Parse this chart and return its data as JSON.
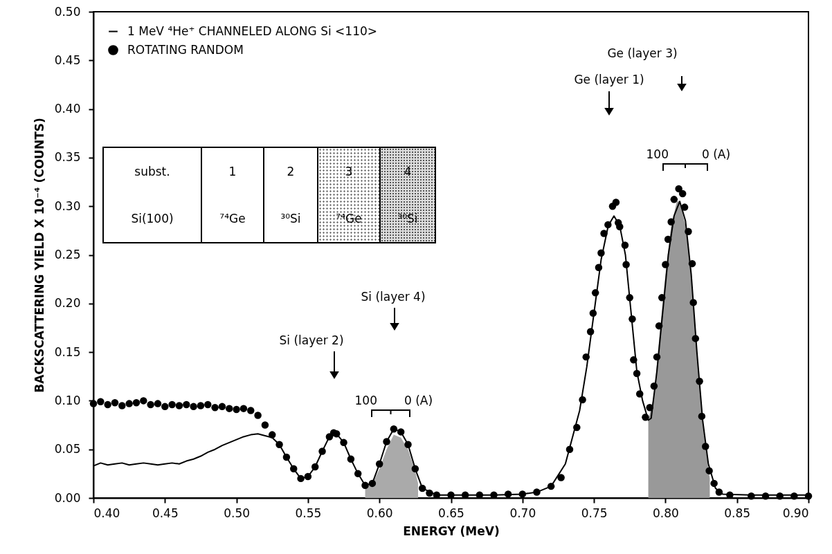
{
  "chart_data": {
    "type": "line",
    "xlabel": "ENERGY (MeV)",
    "ylabel": "BACKSCATTERING YIELD X 10⁻⁴ (COUNTS)",
    "xlim": [
      0.4,
      0.9
    ],
    "ylim": [
      0,
      0.5
    ],
    "xticks": [
      {
        "value": 0.4,
        "label": "0.40"
      },
      0.45,
      {
        "value": 0.5,
        "label": "0.50"
      },
      0.55,
      {
        "value": 0.6,
        "label": "0.60"
      },
      0.65,
      {
        "value": 0.7,
        "label": "0.70"
      },
      0.75,
      {
        "value": 0.8,
        "label": "0.80"
      },
      0.85,
      {
        "value": 0.9,
        "label": "0.90"
      }
    ],
    "yticks": [
      {
        "value": 0,
        "label": "0.00"
      },
      0.05,
      {
        "value": 0.1,
        "label": "0.10"
      },
      0.15,
      {
        "value": 0.2,
        "label": "0.20"
      },
      0.25,
      {
        "value": 0.3,
        "label": "0.30"
      },
      0.35,
      {
        "value": 0.4,
        "label": "0.40"
      },
      0.45,
      {
        "value": 0.5,
        "label": "0.50"
      }
    ],
    "grid": false,
    "legend": "top left",
    "line_style": "solid",
    "series": [
      {
        "type": "area",
        "color": "#aaaaaa",
        "x": [
          0.59,
          0.595,
          0.6,
          0.605,
          0.61,
          0.615,
          0.62,
          0.625,
          0.627
        ],
        "values": [
          0.012,
          0.014,
          0.03,
          0.05,
          0.065,
          0.062,
          0.05,
          0.028,
          0.015
        ]
      },
      {
        "type": "area",
        "color": "#999999",
        "x": [
          0.788,
          0.792,
          0.796,
          0.8,
          0.804,
          0.808,
          0.81,
          0.814,
          0.818,
          0.822,
          0.826,
          0.83,
          0.831
        ],
        "values": [
          0.08,
          0.105,
          0.17,
          0.23,
          0.28,
          0.305,
          0.305,
          0.28,
          0.23,
          0.15,
          0.08,
          0.03,
          0.02
        ]
      },
      {
        "name": "1 MeV ⁴He⁺ CHANNELED ALONG Si <110>",
        "color": "#000000",
        "x": [
          0.4,
          0.405,
          0.41,
          0.415,
          0.42,
          0.425,
          0.43,
          0.435,
          0.44,
          0.445,
          0.45,
          0.455,
          0.46,
          0.465,
          0.47,
          0.475,
          0.48,
          0.485,
          0.49,
          0.495,
          0.5,
          0.505,
          0.51,
          0.515,
          0.52,
          0.525,
          0.53,
          0.535,
          0.54,
          0.545,
          0.55,
          0.555,
          0.56,
          0.565,
          0.568,
          0.57,
          0.575,
          0.58,
          0.585,
          0.59,
          0.595,
          0.6,
          0.605,
          0.61,
          0.615,
          0.62,
          0.625,
          0.63,
          0.64,
          0.66,
          0.68,
          0.7,
          0.71,
          0.72,
          0.73,
          0.74,
          0.745,
          0.75,
          0.755,
          0.76,
          0.764,
          0.768,
          0.772,
          0.776,
          0.78,
          0.784,
          0.788,
          0.79,
          0.794,
          0.798,
          0.802,
          0.806,
          0.81,
          0.814,
          0.818,
          0.822,
          0.826,
          0.83,
          0.835,
          0.84,
          0.86,
          0.9
        ],
        "values": [
          0.033,
          0.036,
          0.034,
          0.035,
          0.036,
          0.034,
          0.035,
          0.036,
          0.035,
          0.034,
          0.035,
          0.036,
          0.035,
          0.038,
          0.04,
          0.043,
          0.047,
          0.05,
          0.054,
          0.057,
          0.06,
          0.063,
          0.065,
          0.066,
          0.064,
          0.062,
          0.055,
          0.042,
          0.03,
          0.02,
          0.022,
          0.032,
          0.048,
          0.063,
          0.067,
          0.066,
          0.057,
          0.04,
          0.025,
          0.013,
          0.015,
          0.035,
          0.058,
          0.071,
          0.068,
          0.055,
          0.03,
          0.01,
          0.003,
          0.003,
          0.003,
          0.004,
          0.006,
          0.012,
          0.035,
          0.09,
          0.135,
          0.19,
          0.245,
          0.28,
          0.29,
          0.28,
          0.25,
          0.19,
          0.13,
          0.1,
          0.08,
          0.082,
          0.13,
          0.19,
          0.25,
          0.29,
          0.305,
          0.285,
          0.23,
          0.15,
          0.08,
          0.035,
          0.01,
          0.004,
          0.003,
          0.003
        ]
      },
      {
        "type": "scatter",
        "name": "ROTATING RANDOM",
        "color": "#000000",
        "marker": "circle",
        "x": [
          0.4,
          0.405,
          0.41,
          0.415,
          0.42,
          0.425,
          0.43,
          0.435,
          0.44,
          0.445,
          0.45,
          0.455,
          0.46,
          0.465,
          0.47,
          0.475,
          0.48,
          0.485,
          0.49,
          0.495,
          0.5,
          0.505,
          0.51,
          0.515,
          0.52,
          0.525,
          0.53,
          0.535,
          0.54,
          0.545,
          0.55,
          0.555,
          0.56,
          0.565,
          0.568,
          0.57,
          0.575,
          0.58,
          0.585,
          0.59,
          0.595,
          0.6,
          0.605,
          0.61,
          0.615,
          0.62,
          0.625,
          0.63,
          0.635,
          0.64,
          0.65,
          0.66,
          0.67,
          0.68,
          0.69,
          0.7,
          0.71,
          0.72,
          0.727,
          0.733,
          0.738,
          0.742,
          0.7445,
          0.7476,
          0.7494,
          0.751,
          0.7533,
          0.755,
          0.757,
          0.7598,
          0.763,
          0.7654,
          0.767,
          0.768,
          0.7717,
          0.7725,
          0.775,
          0.7768,
          0.7777,
          0.78,
          0.782,
          0.786,
          0.789,
          0.792,
          0.794,
          0.7955,
          0.7975,
          0.8,
          0.8018,
          0.804,
          0.806,
          0.8093,
          0.812,
          0.8134,
          0.816,
          0.8187,
          0.8195,
          0.821,
          0.8238,
          0.8254,
          0.828,
          0.8306,
          0.834,
          0.8375,
          0.845,
          0.86,
          0.87,
          0.88,
          0.89,
          0.9
        ],
        "values": [
          0.097,
          0.099,
          0.096,
          0.098,
          0.095,
          0.097,
          0.098,
          0.1,
          0.096,
          0.097,
          0.094,
          0.096,
          0.095,
          0.096,
          0.094,
          0.095,
          0.096,
          0.093,
          0.094,
          0.092,
          0.091,
          0.092,
          0.09,
          0.085,
          0.075,
          0.065,
          0.055,
          0.042,
          0.03,
          0.02,
          0.022,
          0.032,
          0.048,
          0.063,
          0.067,
          0.066,
          0.057,
          0.04,
          0.025,
          0.013,
          0.015,
          0.035,
          0.058,
          0.071,
          0.068,
          0.055,
          0.03,
          0.01,
          0.005,
          0.003,
          0.003,
          0.003,
          0.003,
          0.003,
          0.004,
          0.004,
          0.006,
          0.012,
          0.021,
          0.05,
          0.0725,
          0.101,
          0.145,
          0.171,
          0.19,
          0.211,
          0.237,
          0.252,
          0.272,
          0.281,
          0.3,
          0.304,
          0.283,
          0.279,
          0.26,
          0.24,
          0.206,
          0.184,
          0.142,
          0.128,
          0.107,
          0.083,
          0.093,
          0.115,
          0.145,
          0.177,
          0.206,
          0.24,
          0.266,
          0.284,
          0.307,
          0.318,
          0.313,
          0.299,
          0.274,
          0.241,
          0.201,
          0.164,
          0.12,
          0.084,
          0.053,
          0.028,
          0.015,
          0.006,
          0.003,
          0.002,
          0.002,
          0.002,
          0.002,
          0.002
        ]
      }
    ],
    "annotations": [
      "Ge (layer 1)",
      "Ge (layer 3)",
      "Si (layer 4)",
      "Si (layer 2)",
      "subst.",
      "Si(100)",
      "1",
      "⁷⁴Ge",
      "2",
      "³⁰Si",
      "3",
      "⁷⁴Ge",
      "4",
      "³⁰Si",
      "100",
      "0 (A)",
      "100",
      "0 (A)"
    ]
  }
}
